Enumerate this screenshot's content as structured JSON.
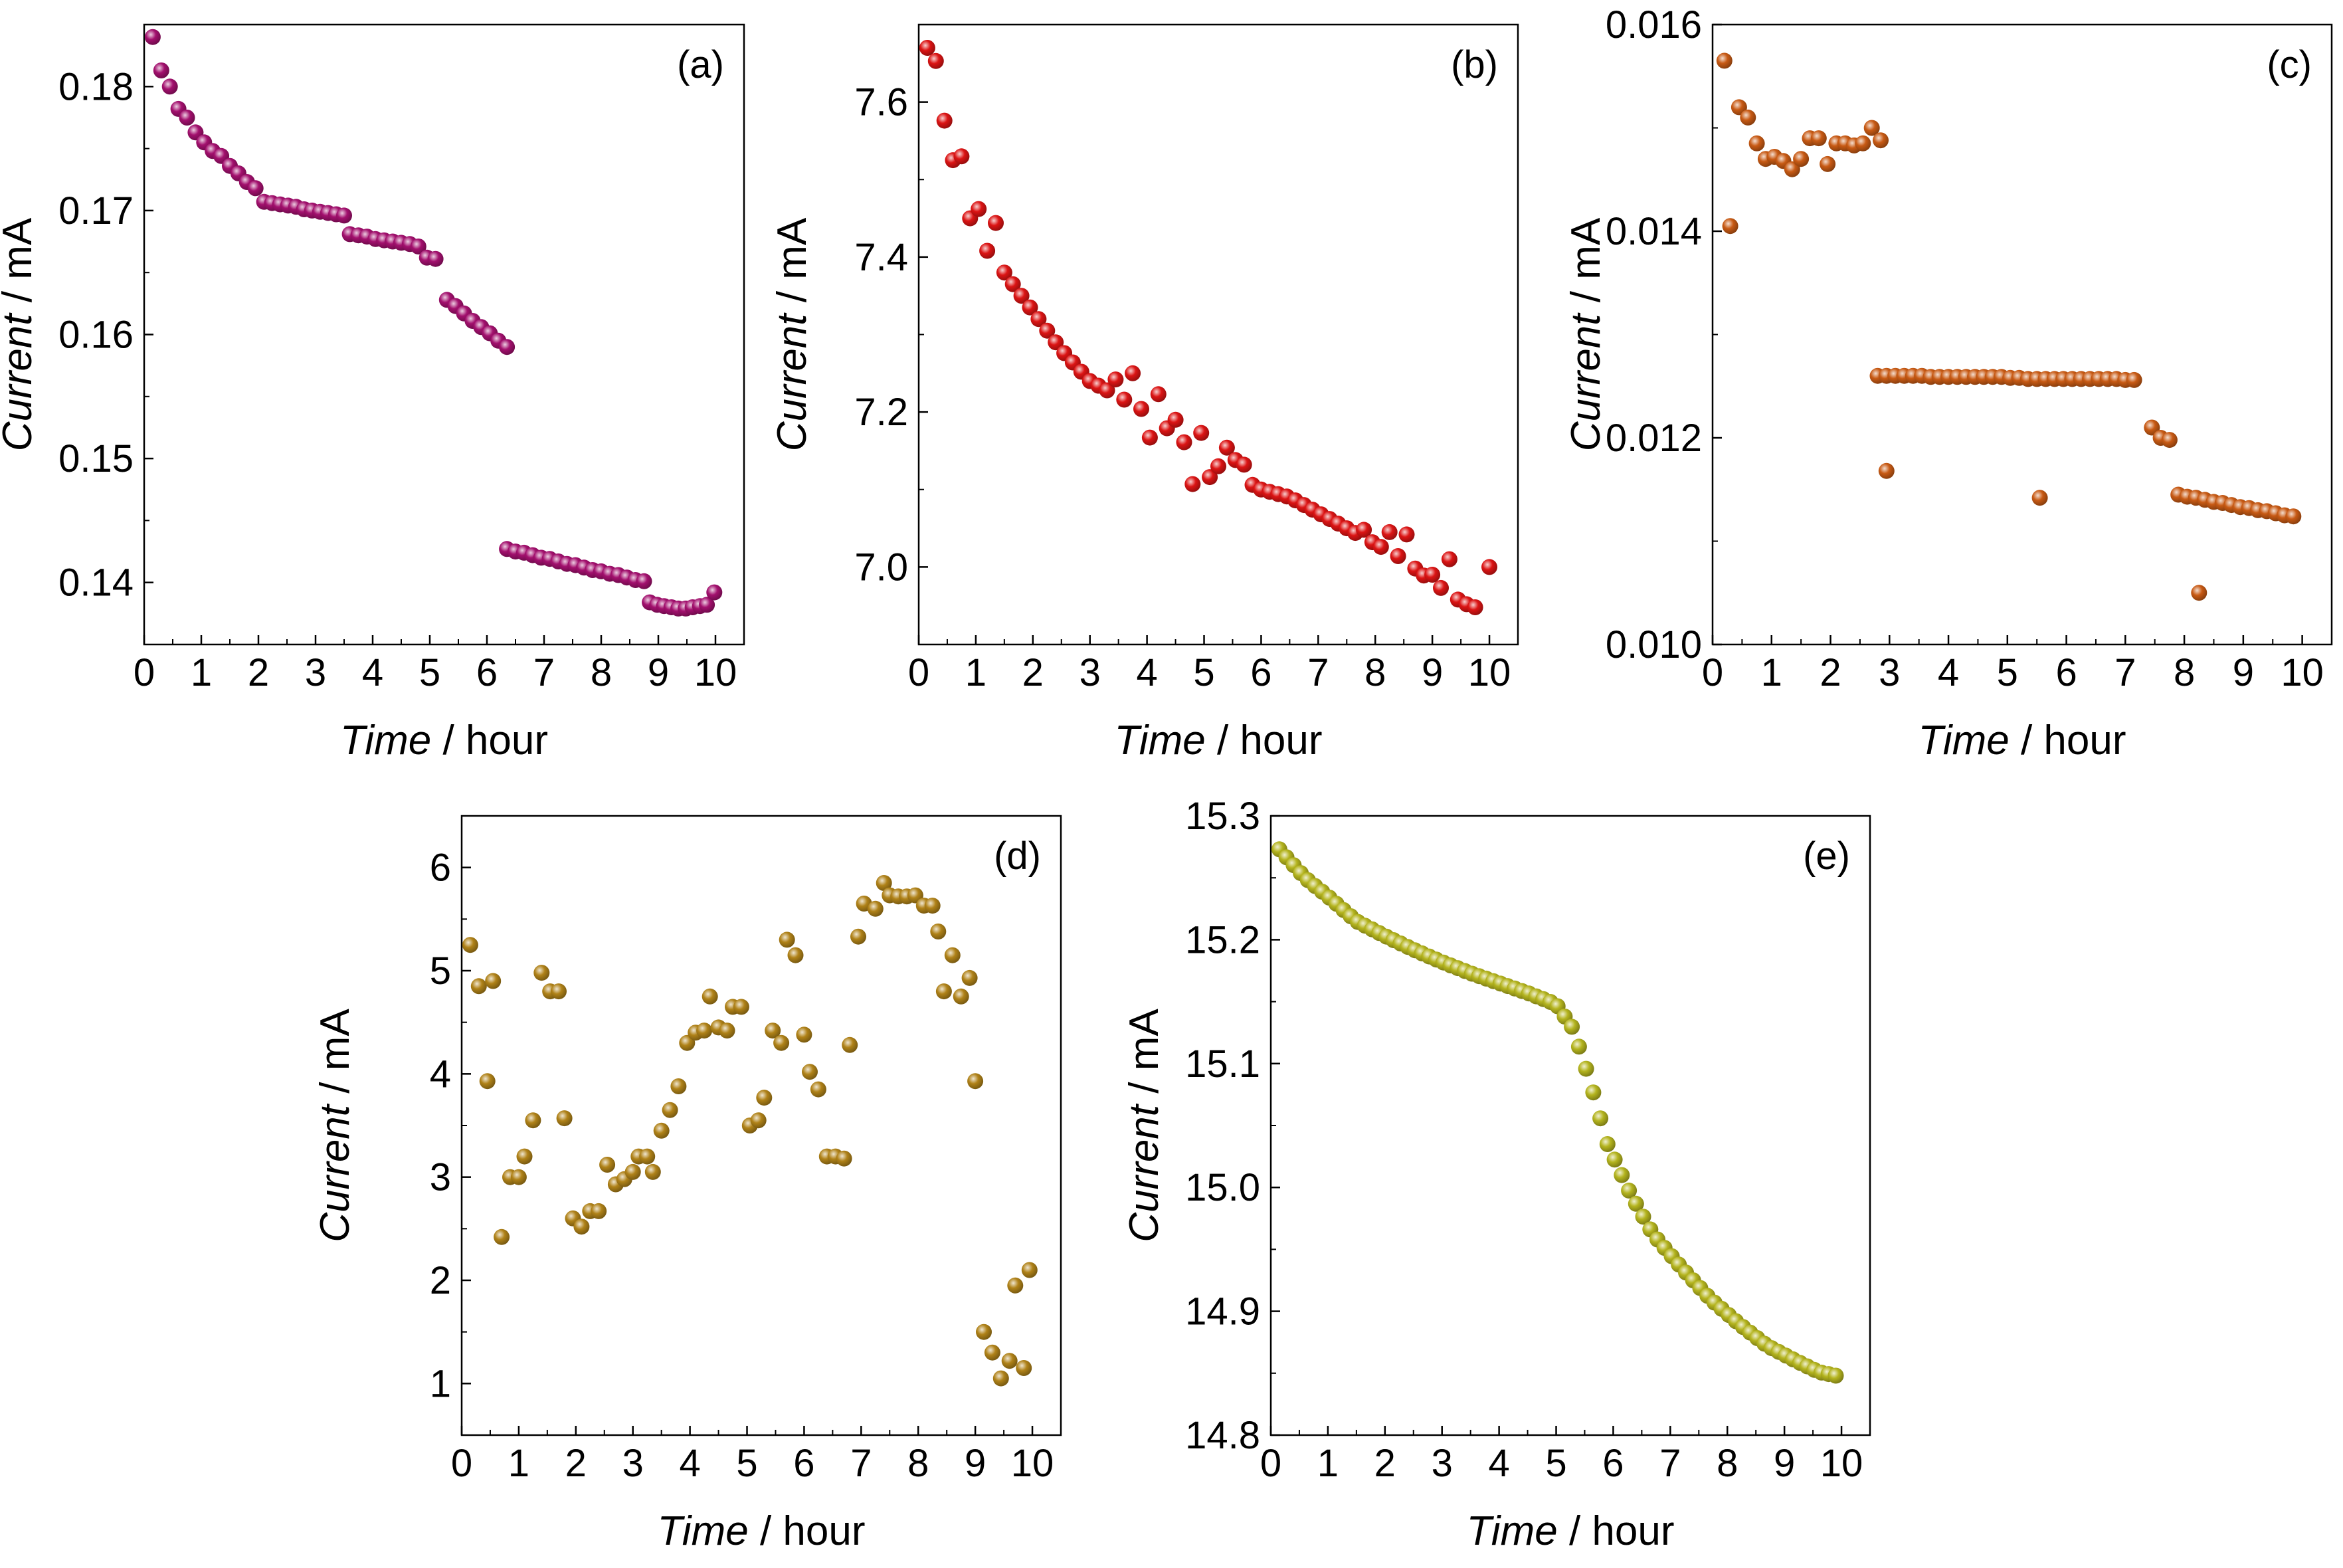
{
  "chart_data": [
    {
      "id": "a",
      "type": "scatter",
      "panel_label": "(a)",
      "xlabel_italic": "Time",
      "xlabel_rest": " / hour",
      "ylabel_italic": "Current",
      "ylabel_rest": " / mA",
      "xlim": [
        0,
        10.5
      ],
      "ylim": [
        0.135,
        0.185
      ],
      "x_ticks": [
        "0",
        "1",
        "2",
        "3",
        "4",
        "5",
        "6",
        "7",
        "8",
        "9",
        "10"
      ],
      "y_ticks": [
        "0.14",
        "0.15",
        "0.16",
        "0.17",
        "0.18"
      ],
      "y_tick_values": [
        0.14,
        0.15,
        0.16,
        0.17,
        0.18
      ],
      "color": "#a3106e",
      "series": [
        {
          "name": "Current",
          "x": [],
          "y": []
        }
      ]
    },
    {
      "id": "b",
      "type": "scatter",
      "panel_label": "(b)",
      "xlabel_italic": "Time",
      "xlabel_rest": " / hour",
      "ylabel_italic": "Current",
      "ylabel_rest": " / mA",
      "xlim": [
        0,
        10.5
      ],
      "ylim": [
        6.9,
        7.7
      ],
      "x_ticks": [
        "0",
        "1",
        "2",
        "3",
        "4",
        "5",
        "6",
        "7",
        "8",
        "9",
        "10"
      ],
      "y_ticks": [
        "7.0",
        "7.2",
        "7.4",
        "7.6"
      ],
      "y_tick_values": [
        7.0,
        7.2,
        7.4,
        7.6
      ],
      "color": "#dc1414",
      "series": [
        {
          "name": "Current",
          "x": [],
          "y": []
        }
      ]
    },
    {
      "id": "c",
      "type": "scatter",
      "panel_label": "(c)",
      "xlabel_italic": "Time",
      "xlabel_rest": " / hour",
      "ylabel_italic": "Current",
      "ylabel_rest": " / mA",
      "xlim": [
        0,
        10.5
      ],
      "ylim": [
        0.01,
        0.016
      ],
      "x_ticks": [
        "0",
        "1",
        "2",
        "3",
        "4",
        "5",
        "6",
        "7",
        "8",
        "9",
        "10"
      ],
      "y_ticks": [
        "0.010",
        "0.012",
        "0.014",
        "0.016"
      ],
      "y_tick_values": [
        0.01,
        0.012,
        0.014,
        0.016
      ],
      "color": "#c85a14",
      "series": [
        {
          "name": "Current",
          "x": [],
          "y": []
        }
      ]
    },
    {
      "id": "d",
      "type": "scatter",
      "panel_label": "(d)",
      "xlabel_italic": "Time",
      "xlabel_rest": " / hour",
      "ylabel_italic": "Current",
      "ylabel_rest": " / mA",
      "xlim": [
        0,
        10.5
      ],
      "ylim": [
        0.5,
        6.5
      ],
      "x_ticks": [
        "0",
        "1",
        "2",
        "3",
        "4",
        "5",
        "6",
        "7",
        "8",
        "9",
        "10"
      ],
      "y_ticks": [
        "1",
        "2",
        "3",
        "4",
        "5",
        "6"
      ],
      "y_tick_values": [
        1,
        2,
        3,
        4,
        5,
        6
      ],
      "color": "#b08218",
      "series": [
        {
          "name": "Current",
          "x": [],
          "y": []
        }
      ]
    },
    {
      "id": "e",
      "type": "scatter",
      "panel_label": "(e)",
      "xlabel_italic": "Time",
      "xlabel_rest": " / hour",
      "ylabel_italic": "Current",
      "ylabel_rest": " / mA",
      "xlim": [
        0,
        10.5
      ],
      "ylim": [
        14.8,
        15.3
      ],
      "x_ticks": [
        "0",
        "1",
        "2",
        "3",
        "4",
        "5",
        "6",
        "7",
        "8",
        "9",
        "10"
      ],
      "y_ticks": [
        "14.8",
        "14.9",
        "15.0",
        "15.1",
        "15.2",
        "15.3"
      ],
      "y_tick_values": [
        14.8,
        14.9,
        15.0,
        15.1,
        15.2,
        15.3
      ],
      "color": "#b4b41e",
      "series": [
        {
          "name": "Current",
          "x": [],
          "y": []
        }
      ]
    }
  ]
}
